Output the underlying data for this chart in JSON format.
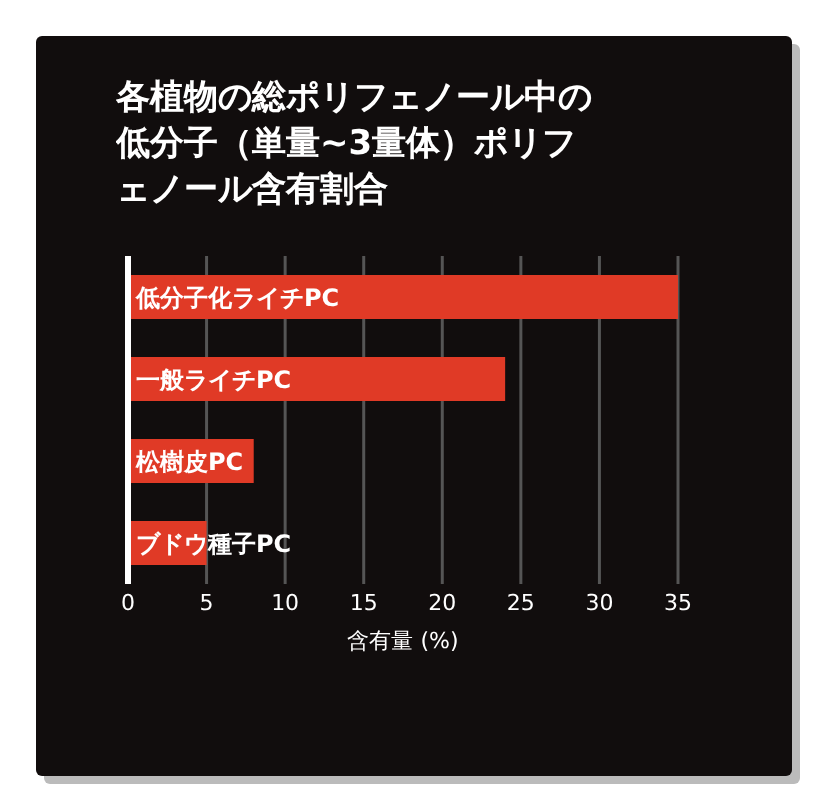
{
  "chart_data": {
    "type": "bar",
    "orientation": "horizontal",
    "title": "各植物の総ポリフェノール中の低分子（単量~3量体）ポリフェノール含有割合",
    "xlabel": "含有量 (%)",
    "categories": [
      "低分子化ライチPC",
      "一般ライチPC",
      "松樹皮PC",
      "ブドウ種子PC"
    ],
    "values": [
      35,
      24,
      8,
      5
    ],
    "color": "#e03a26",
    "xlim": [
      0,
      35
    ],
    "xticks": [
      0,
      5,
      10,
      15,
      20,
      25,
      30,
      35
    ],
    "grid": "x"
  }
}
